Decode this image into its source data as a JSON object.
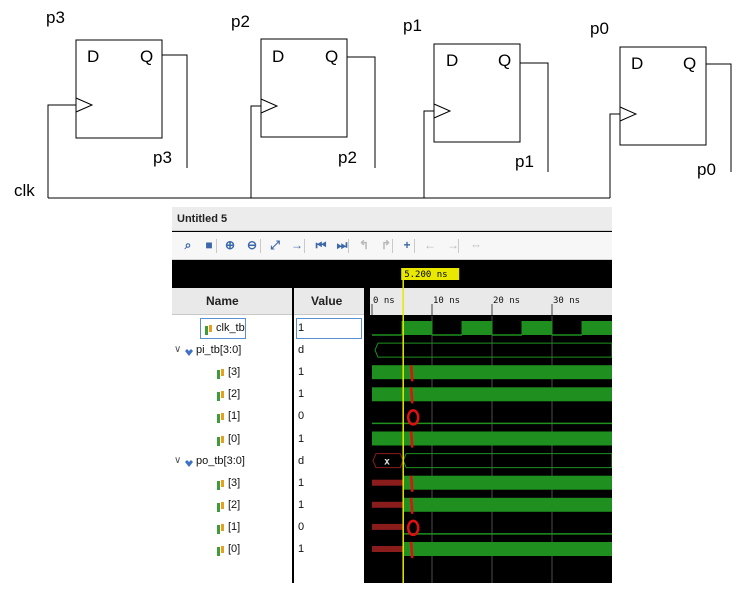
{
  "schematic": {
    "flipflops": [
      {
        "name": "p3",
        "d_label": "D",
        "q_label": "Q",
        "out_label": "p3"
      },
      {
        "name": "p2",
        "d_label": "D",
        "q_label": "Q",
        "out_label": "p2"
      },
      {
        "name": "p1",
        "d_label": "D",
        "q_label": "Q",
        "out_label": "p1"
      },
      {
        "name": "p0",
        "d_label": "D",
        "q_label": "Q",
        "out_label": "p0"
      }
    ],
    "clock_label": "clk"
  },
  "viewer": {
    "title": "Untitled 5",
    "toolbar_icons": [
      "search-icon",
      "save-icon",
      "zoom-in-icon",
      "zoom-out-icon",
      "zoom-fit-icon",
      "go-to-cursor-icon",
      "go-to-start-icon",
      "go-to-end-icon",
      "prev-transition-icon",
      "next-transition-icon",
      "add-marker-icon",
      "prev-marker-icon",
      "next-marker-icon",
      "swap-cursors-icon"
    ],
    "cursor_label": "5.200 ns",
    "columns": {
      "name": "Name",
      "value": "Value"
    },
    "time_ticks": [
      "0 ns",
      "10 ns",
      "20 ns",
      "30 ns"
    ],
    "signals": [
      {
        "name": "clk_tb",
        "value": "1",
        "kind": "bit",
        "indent": 0
      },
      {
        "name": "pi_tb[3:0]",
        "value": "d",
        "kind": "bus",
        "indent": 0
      },
      {
        "name": "[3]",
        "value": "1",
        "kind": "bit",
        "indent": 1
      },
      {
        "name": "[2]",
        "value": "1",
        "kind": "bit",
        "indent": 1
      },
      {
        "name": "[1]",
        "value": "0",
        "kind": "bit",
        "indent": 1
      },
      {
        "name": "[0]",
        "value": "1",
        "kind": "bit",
        "indent": 1
      },
      {
        "name": "po_tb[3:0]",
        "value": "d",
        "kind": "bus",
        "indent": 0
      },
      {
        "name": "[3]",
        "value": "1",
        "kind": "bit",
        "indent": 1
      },
      {
        "name": "[2]",
        "value": "1",
        "kind": "bit",
        "indent": 1
      },
      {
        "name": "[1]",
        "value": "0",
        "kind": "bit",
        "indent": 1
      },
      {
        "name": "[0]",
        "value": "1",
        "kind": "bit",
        "indent": 1
      }
    ],
    "bus_unknown_label": "x",
    "annotation_digits": [
      "1",
      "1",
      "0",
      "1"
    ],
    "colors": {
      "wave_green": "#1f8f1f",
      "wave_dark": "#0b3a0b",
      "unknown_red": "#8a1c1c",
      "cursor": "#e8e800",
      "annotation": "#e01010"
    }
  }
}
